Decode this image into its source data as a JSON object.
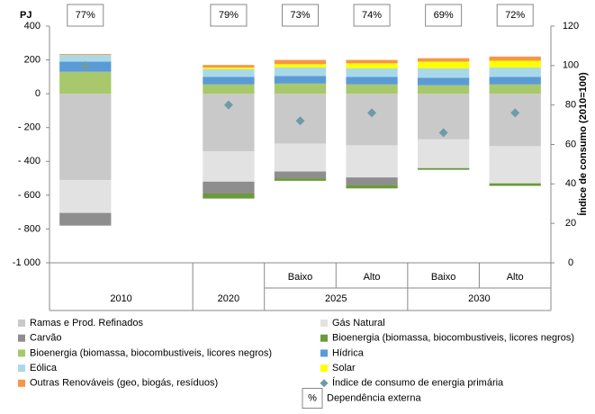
{
  "chart_data": {
    "type": "bar",
    "stacked": true,
    "ylabel": "PJ",
    "y2label": "Índice de consumo (2010=100)",
    "categories": [
      null,
      null,
      null,
      "Baixo",
      "Alto",
      "Baixo",
      "Alto"
    ],
    "groups": [
      {
        "label": "2010",
        "count": 2
      },
      {
        "label": "2020",
        "count": 1
      },
      {
        "label": "2025",
        "count": 2
      },
      {
        "label": "2030",
        "count": 2
      }
    ],
    "ylim": [
      -1000,
      400
    ],
    "yticks": [
      {
        "value": -1000,
        "label": "-1 000"
      },
      {
        "value": -800,
        "label": "- 800"
      },
      {
        "value": -600,
        "label": "- 600"
      },
      {
        "value": -400,
        "label": "- 400"
      },
      {
        "value": -200,
        "label": "- 200"
      },
      0,
      200,
      400
    ],
    "y2lim": [
      0,
      120
    ],
    "y2ticks": [
      0,
      20,
      40,
      60,
      80,
      100,
      120
    ],
    "series": [
      {
        "name": "Ramas e Prod. Refinados",
        "color": "#c9c9c9",
        "values": [
          -510,
          null,
          -340,
          -295,
          -305,
          -270,
          -310
        ]
      },
      {
        "name": "Gás Natural",
        "color": "#e2e2e2",
        "values": [
          -195,
          null,
          -180,
          -165,
          -190,
          -170,
          -220
        ]
      },
      {
        "name": "Carvão",
        "color": "#8e8e8e",
        "values": [
          -75,
          null,
          -70,
          -40,
          -45,
          0,
          0
        ]
      },
      {
        "name": "Bioenergia (biomassa, biocombustiveis, licores negros)",
        "color": "#6b9a3b",
        "values": [
          0,
          null,
          -30,
          -15,
          -20,
          -10,
          -15
        ]
      },
      {
        "name": "Bioenergia (biomassa, biocombustiveis, licores negros)",
        "color": "#a7c96b",
        "values": [
          130,
          null,
          55,
          60,
          55,
          50,
          55
        ]
      },
      {
        "name": "Hídrica",
        "color": "#5b9bd5",
        "values": [
          60,
          null,
          45,
          45,
          45,
          45,
          45
        ]
      },
      {
        "name": "Eólica",
        "color": "#a9d9e8",
        "values": [
          40,
          null,
          45,
          50,
          50,
          55,
          55
        ]
      },
      {
        "name": "Solar",
        "color": "#ffff00",
        "values": [
          0,
          null,
          10,
          20,
          30,
          40,
          40
        ]
      },
      {
        "name": "Outras Renováveis (geo, biogás, resíduos)",
        "color": "#f79646",
        "values": [
          5,
          null,
          15,
          25,
          20,
          20,
          25
        ]
      }
    ],
    "index_series": {
      "name": "Índice de consumo de energia primária",
      "color": "#6e9ba8",
      "axis": "y2",
      "values": [
        100,
        null,
        80,
        72,
        76,
        66,
        76
      ]
    },
    "dependence": {
      "symbol": "%",
      "label": "Dependência externa",
      "values": [
        77,
        null,
        79,
        73,
        74,
        69,
        72
      ],
      "value_labels": [
        "77%",
        null,
        "79%",
        "73%",
        "74%",
        "69%",
        "72%"
      ]
    }
  }
}
